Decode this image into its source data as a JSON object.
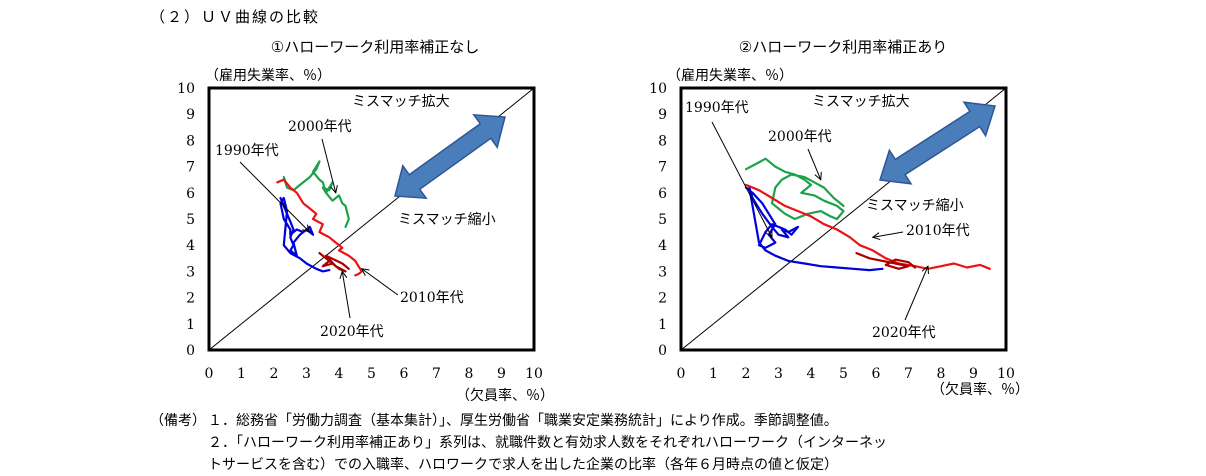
{
  "section_title": "（２）ＵＶ曲線の比較",
  "notes": {
    "head": "（備考）",
    "items": [
      "１．総務省「労働力調査（基本集計）」、厚生労働省「職業安定業務統計」により作成。季節調整値。",
      "２．「ハローワーク利用率補正あり」系列は、就職件数と有効求人数をそれぞれハローワーク（インターネッ",
      "トサービスを含む）での入職率、ハロワークで求人を出した企業の比率（各年６月時点の値と仮定）"
    ]
  },
  "colors": {
    "1990s": "#0000dd",
    "2000s": "#1aa34a",
    "2010s": "#ee1111",
    "2020s": "#aa0000",
    "arrow_fill": "#4a7ebb",
    "arrow_stroke": "#2f5597"
  },
  "chart_data": [
    {
      "type": "line",
      "title": "①ハローワーク利用率補正なし",
      "xlabel": "（欠員率、％）",
      "ylabel": "（雇用失業率、％）",
      "xlim": [
        0,
        10
      ],
      "ylim": [
        0,
        10
      ],
      "xticks": [
        "0",
        "1",
        "2",
        "3",
        "4",
        "5",
        "6",
        "7",
        "8",
        "9",
        "10"
      ],
      "yticks": [
        "0",
        "1",
        "2",
        "3",
        "4",
        "5",
        "6",
        "7",
        "8",
        "9",
        "10"
      ],
      "annotations": {
        "widen": "ミスマッチ拡大",
        "shrink": "ミスマッチ縮小",
        "1990s": "1990年代",
        "2000s": "2000年代",
        "2010s": "2010年代",
        "2020s": "2020年代"
      },
      "series": [
        {
          "key": "1990s",
          "name": "1990年代",
          "x": [
            2.2,
            2.3,
            2.4,
            2.5,
            2.6,
            2.5,
            2.6,
            2.5,
            2.7,
            2.6,
            2.8,
            3.0,
            3.2,
            3.1,
            2.9,
            2.7,
            2.5,
            2.5,
            2.3,
            2.2,
            2.3,
            2.4,
            2.3,
            2.5,
            2.8,
            3.0,
            3.3,
            3.5,
            3.7
          ],
          "y": [
            5.8,
            5.5,
            5.2,
            4.9,
            4.6,
            4.3,
            4.0,
            3.8,
            3.6,
            4.1,
            4.4,
            4.6,
            4.4,
            4.7,
            4.5,
            4.6,
            4.4,
            4.6,
            5.0,
            5.6,
            5.8,
            5.3,
            4.0,
            3.7,
            3.5,
            3.3,
            3.1,
            3.0,
            3.05
          ]
        },
        {
          "key": "2000s",
          "name": "2000年代",
          "x": [
            2.3,
            2.4,
            2.6,
            2.8,
            3.1,
            3.3,
            3.4,
            3.2,
            3.4,
            3.5,
            3.6,
            3.5,
            3.7,
            3.8,
            3.6,
            3.8,
            4.0,
            4.1,
            4.2,
            4.3,
            4.2
          ],
          "y": [
            6.6,
            6.2,
            6.1,
            6.3,
            6.6,
            6.9,
            7.2,
            6.8,
            6.5,
            6.4,
            6.0,
            6.2,
            6.1,
            6.4,
            6.0,
            5.7,
            5.9,
            5.6,
            5.5,
            5.0,
            4.7
          ]
        },
        {
          "key": "2010s",
          "name": "2010年代",
          "x": [
            2.1,
            2.3,
            2.5,
            2.7,
            2.9,
            3.1,
            3.3,
            3.2,
            3.5,
            3.4,
            3.7,
            3.9,
            4.1,
            4.0,
            4.3,
            4.5,
            4.6,
            4.7,
            4.6,
            4.5
          ],
          "y": [
            6.4,
            6.5,
            6.2,
            6.0,
            5.6,
            5.4,
            5.2,
            5.0,
            4.8,
            4.5,
            4.3,
            4.1,
            3.9,
            3.8,
            3.6,
            3.4,
            3.2,
            3.0,
            2.9,
            2.85
          ]
        },
        {
          "key": "2020s",
          "name": "2020年代",
          "x": [
            3.4,
            3.6,
            3.8,
            3.5,
            3.7,
            4.0,
            4.2,
            3.9,
            3.6,
            4.1,
            4.3
          ],
          "y": [
            3.7,
            3.5,
            3.3,
            3.2,
            3.4,
            3.1,
            3.0,
            3.2,
            3.6,
            3.3,
            3.1
          ]
        }
      ]
    },
    {
      "type": "line",
      "title": "②ハローワーク利用率補正あり",
      "xlabel": "（欠員率、％）",
      "ylabel": "（雇用失業率、％）",
      "xlim": [
        0,
        10
      ],
      "ylim": [
        0,
        10
      ],
      "xticks": [
        "0",
        "1",
        "2",
        "3",
        "4",
        "5",
        "6",
        "7",
        "8",
        "9",
        "10"
      ],
      "yticks": [
        "0",
        "1",
        "2",
        "3",
        "4",
        "5",
        "6",
        "7",
        "8",
        "9",
        "10"
      ],
      "annotations": {
        "widen": "ミスマッチ拡大",
        "shrink": "ミスマッチ縮小",
        "1990s": "1990年代",
        "2000s": "2000年代",
        "2010s": "2010年代",
        "2020s": "2020年代"
      },
      "series": [
        {
          "key": "1990s",
          "name": "1990年代",
          "x": [
            2.0,
            2.2,
            2.5,
            2.7,
            2.9,
            2.7,
            2.9,
            2.6,
            2.4,
            2.6,
            2.8,
            3.2,
            3.4,
            3.6,
            3.3,
            3.1,
            3.3,
            3.0,
            2.8,
            2.5,
            2.2,
            2.1,
            2.4,
            2.6,
            2.9,
            3.3,
            3.8,
            4.3,
            4.8,
            5.3,
            5.8,
            6.2
          ],
          "y": [
            6.2,
            6.0,
            5.6,
            5.2,
            4.8,
            4.4,
            4.1,
            3.9,
            4.0,
            4.5,
            4.8,
            4.6,
            4.4,
            4.7,
            4.5,
            4.6,
            4.3,
            4.4,
            4.7,
            5.2,
            5.8,
            6.2,
            4.1,
            3.8,
            3.6,
            3.4,
            3.3,
            3.2,
            3.15,
            3.1,
            3.05,
            3.1
          ]
        },
        {
          "key": "2000s",
          "name": "2000年代",
          "x": [
            2.0,
            2.3,
            2.6,
            2.9,
            3.2,
            3.5,
            3.8,
            4.0,
            3.7,
            4.1,
            4.4,
            4.6,
            4.8,
            5.0,
            4.8,
            4.6,
            4.3,
            3.9,
            3.5,
            3.2,
            3.0,
            2.8,
            2.9,
            3.1,
            3.4,
            3.8,
            4.1,
            4.4,
            4.7,
            5.0
          ],
          "y": [
            6.9,
            7.1,
            7.3,
            7.0,
            6.8,
            6.7,
            6.5,
            6.3,
            6.0,
            5.9,
            5.7,
            5.6,
            5.5,
            5.3,
            5.0,
            5.1,
            5.3,
            5.2,
            5.0,
            5.2,
            5.4,
            5.6,
            6.2,
            6.5,
            6.7,
            6.6,
            6.4,
            6.2,
            5.8,
            5.5
          ]
        },
        {
          "key": "2010s",
          "name": "2010年代",
          "x": [
            2.0,
            2.4,
            2.8,
            3.2,
            3.6,
            4.0,
            4.4,
            4.8,
            5.2,
            5.5,
            5.9,
            6.3,
            6.7,
            7.2,
            7.6,
            8.0,
            8.4,
            8.8,
            9.2,
            9.5
          ],
          "y": [
            6.3,
            6.1,
            5.8,
            5.5,
            5.3,
            5.1,
            4.8,
            4.6,
            4.3,
            4.0,
            3.8,
            3.5,
            3.3,
            3.2,
            3.1,
            3.2,
            3.3,
            3.15,
            3.25,
            3.1
          ]
        },
        {
          "key": "2020s",
          "name": "2020年代",
          "x": [
            5.4,
            5.8,
            6.2,
            6.6,
            7.0,
            6.7,
            6.3,
            6.6,
            7.0,
            7.2
          ],
          "y": [
            3.7,
            3.5,
            3.4,
            3.3,
            3.2,
            3.1,
            3.25,
            3.45,
            3.35,
            3.15
          ]
        }
      ]
    }
  ]
}
